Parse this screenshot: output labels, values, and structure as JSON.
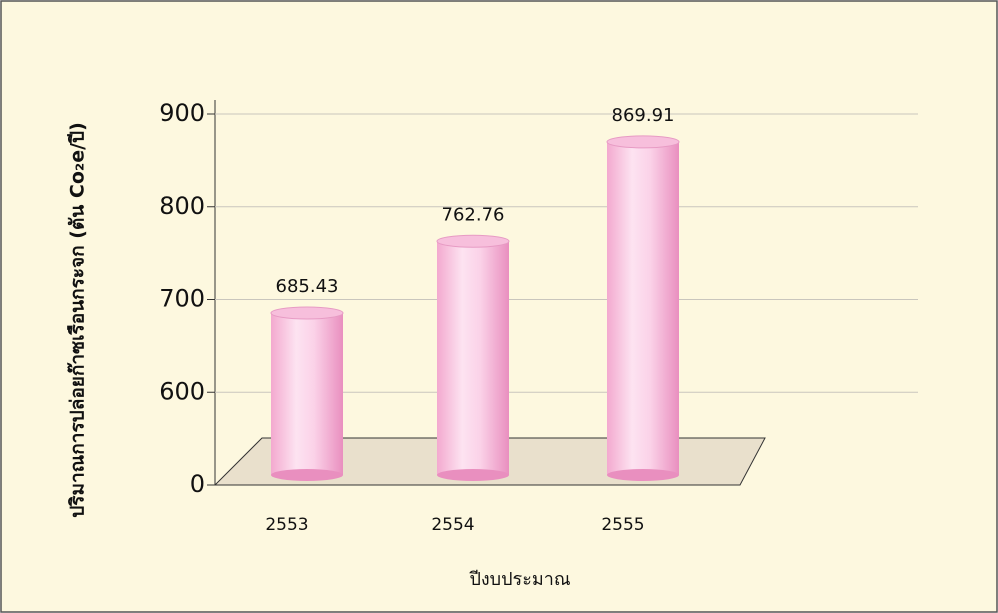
{
  "chart_data": {
    "type": "bar",
    "y_label": "ปริมาณการปล่อยก๊าซเรือนกระจก (ตัน Co₂e/ปี)",
    "x_label": "ปีงบประมาณ",
    "categories": [
      "2553",
      "2554",
      "2555"
    ],
    "values": [
      685.43,
      762.76,
      869.91
    ],
    "color": "#f7bfdc",
    "ylim": [
      0,
      900
    ],
    "yticks": [
      0,
      600,
      700,
      800,
      900
    ],
    "axis_break": true,
    "grid": true
  }
}
